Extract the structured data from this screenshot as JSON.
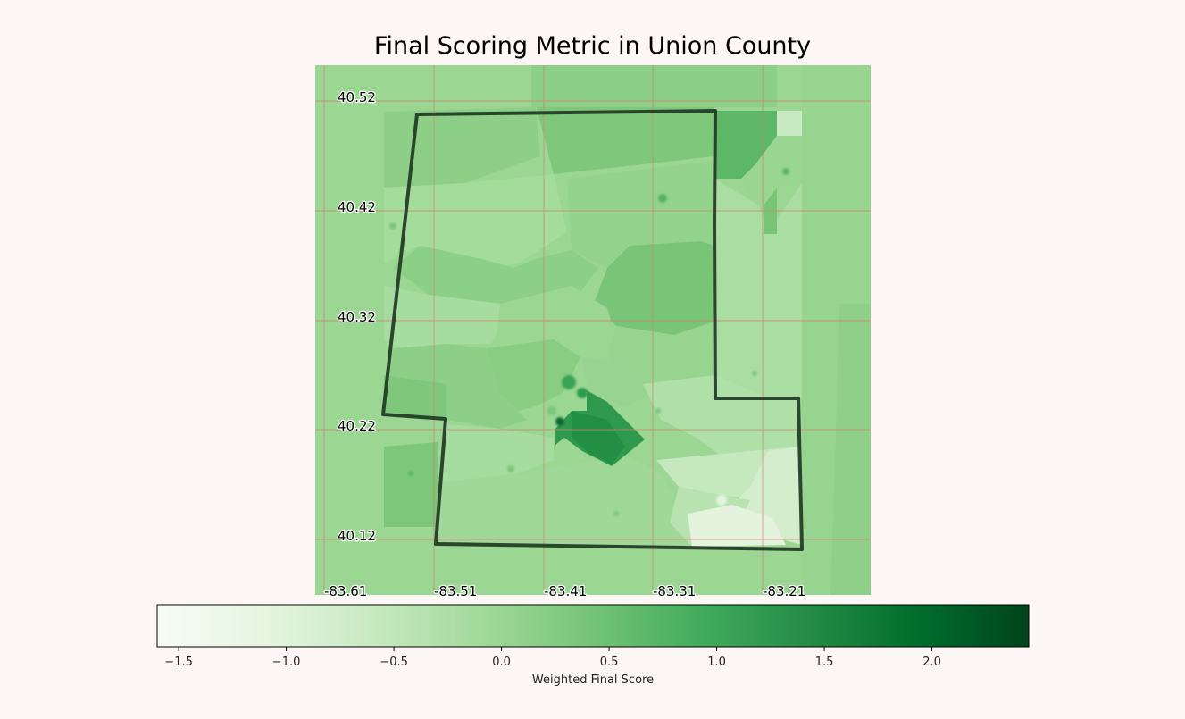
{
  "title": "Final Scoring Metric in Union County",
  "map": {
    "region": "Union County",
    "lat_ticks": [
      "40.52",
      "40.42",
      "40.32",
      "40.22",
      "40.12"
    ],
    "lon_ticks": [
      "-83.61",
      "-83.51",
      "-83.41",
      "-83.31",
      "-83.21"
    ],
    "grid": true,
    "grid_color": "#d08070",
    "boundary_color": "#1f3a24"
  },
  "colorbar": {
    "label": "Weighted Final Score",
    "ticks": [
      "−1.5",
      "−1.0",
      "−0.5",
      "0.0",
      "0.5",
      "1.0",
      "1.5",
      "2.0"
    ],
    "tick_values": [
      -1.5,
      -1.0,
      -0.5,
      0.0,
      0.5,
      1.0,
      1.5,
      2.0
    ],
    "vmin": -1.6,
    "vmax": 2.45,
    "colormap": "Greens",
    "colors": [
      "#f7fcf5",
      "#e5f5e0",
      "#c7e9c0",
      "#a1d99b",
      "#74c476",
      "#41ab5d",
      "#238b45",
      "#006d2c",
      "#00441b"
    ]
  }
}
